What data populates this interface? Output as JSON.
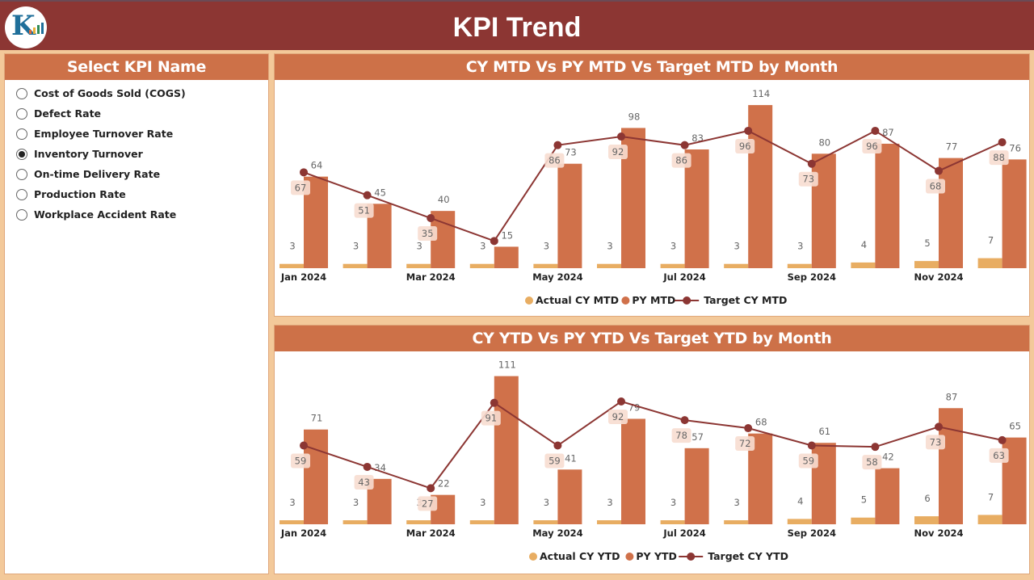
{
  "header": {
    "title": "KPI Trend",
    "logo_icon": "rk-logo-icon"
  },
  "colors": {
    "header_bg": "#8c3633",
    "panel_head": "#cd7148",
    "page_bg": "#f3c99a",
    "actual": "#e8ad62",
    "py": "#d0714a",
    "target": "#8c3633"
  },
  "slicer": {
    "title": "Select KPI Name",
    "items": [
      {
        "label": "Cost of Goods Sold (COGS)",
        "selected": false
      },
      {
        "label": "Defect Rate",
        "selected": false
      },
      {
        "label": "Employee Turnover Rate",
        "selected": false
      },
      {
        "label": "Inventory Turnover",
        "selected": true
      },
      {
        "label": "On-time Delivery Rate",
        "selected": false
      },
      {
        "label": "Production Rate",
        "selected": false
      },
      {
        "label": "Workplace Accident Rate",
        "selected": false
      }
    ]
  },
  "chart_data": [
    {
      "type": "bar",
      "title": "CY MTD Vs PY MTD Vs Target MTD by Month",
      "categories": [
        "Jan 2024",
        "Feb 2024",
        "Mar 2024",
        "Apr 2024",
        "May 2024",
        "Jun 2024",
        "Jul 2024",
        "Aug 2024",
        "Sep 2024",
        "Oct 2024",
        "Nov 2024",
        "Dec 2024"
      ],
      "tick_labels": [
        "Jan 2024",
        "",
        "Mar 2024",
        "",
        "May 2024",
        "",
        "Jul 2024",
        "",
        "Sep 2024",
        "",
        "Nov 2024",
        ""
      ],
      "series": [
        {
          "name": "Actual CY MTD",
          "kind": "bar",
          "values": [
            3,
            3,
            3,
            3,
            3,
            3,
            3,
            3,
            3,
            4,
            5,
            7
          ]
        },
        {
          "name": "PY MTD",
          "kind": "bar",
          "values": [
            64,
            45,
            40,
            15,
            73,
            98,
            83,
            114,
            80,
            87,
            77,
            76
          ]
        },
        {
          "name": "Target CY MTD",
          "kind": "line",
          "values": [
            67,
            51,
            35,
            19,
            86,
            92,
            86,
            96,
            73,
            96,
            68,
            88
          ],
          "labels": [
            "67",
            "51",
            "35",
            "",
            "86",
            "92",
            "86",
            "96",
            "73",
            "96",
            "68",
            "88"
          ]
        }
      ],
      "ylim": [
        0,
        118
      ],
      "legend": "bottom-center",
      "grid": false
    },
    {
      "type": "bar",
      "title": "CY YTD Vs PY YTD Vs Target YTD by Month",
      "categories": [
        "Jan 2024",
        "Feb 2024",
        "Mar 2024",
        "Apr 2024",
        "May 2024",
        "Jun 2024",
        "Jul 2024",
        "Aug 2024",
        "Sep 2024",
        "Oct 2024",
        "Nov 2024",
        "Dec 2024"
      ],
      "tick_labels": [
        "Jan 2024",
        "",
        "Mar 2024",
        "",
        "May 2024",
        "",
        "Jul 2024",
        "",
        "Sep 2024",
        "",
        "Nov 2024",
        ""
      ],
      "series": [
        {
          "name": "Actual CY YTD",
          "kind": "bar",
          "values": [
            3,
            3,
            3,
            3,
            3,
            3,
            3,
            3,
            4,
            5,
            6,
            7
          ]
        },
        {
          "name": "PY YTD",
          "kind": "bar",
          "values": [
            71,
            34,
            22,
            111,
            41,
            79,
            57,
            68,
            61,
            42,
            87,
            65
          ]
        },
        {
          "name": "Target CY YTD",
          "kind": "line",
          "values": [
            59,
            43,
            27,
            91,
            59,
            92,
            78,
            72,
            59,
            58,
            73,
            63
          ],
          "labels": [
            "59",
            "43",
            "27",
            "91",
            "59",
            "92",
            "78",
            "72",
            "59",
            "58",
            "73",
            "63"
          ]
        }
      ],
      "ylim": [
        0,
        115
      ],
      "legend": "bottom-center",
      "grid": false
    }
  ]
}
